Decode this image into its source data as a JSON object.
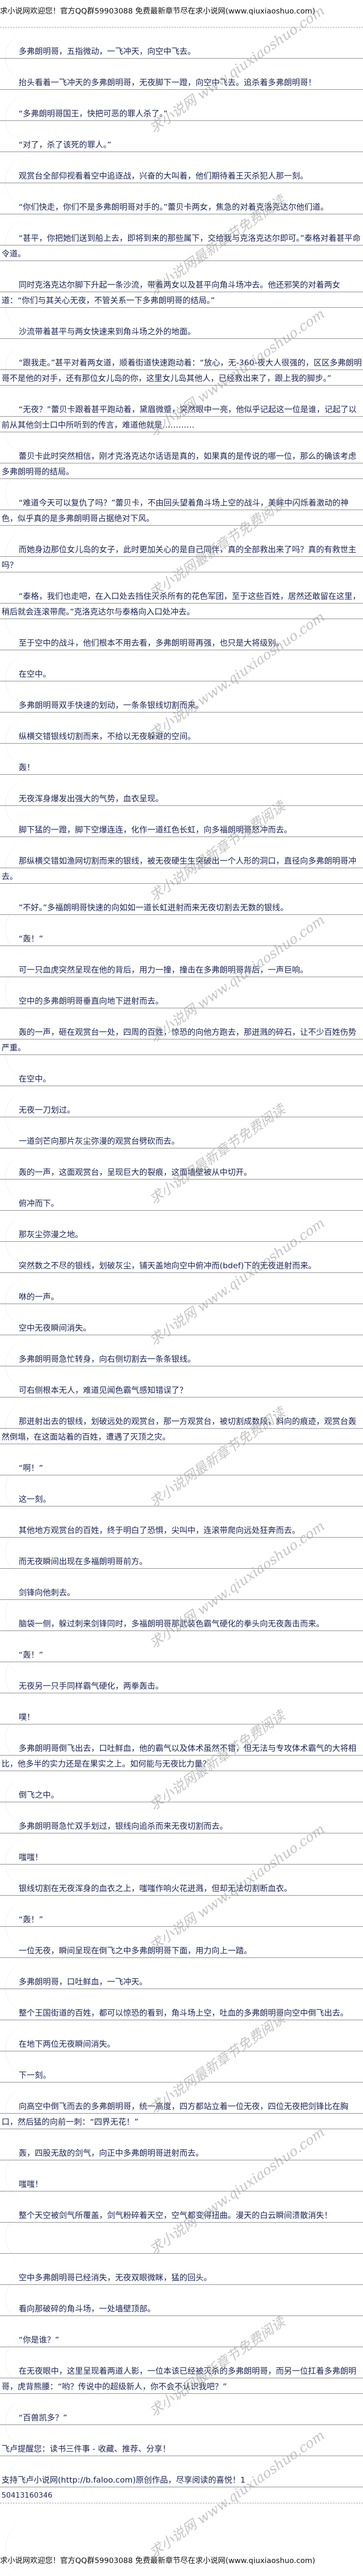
{
  "header": {
    "notice": "求小说网欢迎您！官方QQ群59903088 免费最新章节尽在求小说网(www.qiuxiaoshuo.com)"
  },
  "watermarks": {
    "site": "求小说网 www.qiuxiaoshuo.com",
    "slogan": "求小说网最新章节免费阅读"
  },
  "content": {
    "paragraphs": [
      "多弗朗明哥，五指微动，一飞冲天，向空中飞去。",
      "抬头看着一飞冲天的多弗朗明哥，无夜脚下一蹬，向空中飞去。追杀着多弗朗明哥！",
      "“多弗朗明哥国王，快把可恶的罪人杀了。”",
      "“对了，杀了该死的罪人。”",
      "观赏台全部仰视看着空中追逐战，兴奋的大叫着，他们期待着王灭杀犯人那一刻。",
      "“你们快走，你们不是多弗朗明哥对手的。”蕾贝卡两女，焦急的对着克洛克达尔他们道。",
      "“甚平，你把她们送到船上去，即将到来的那些属下，交给我与克洛克达尔即可。”泰格对着甚平命令道。",
      "同时克洛克达尔脚下升起一条沙流，带着两女以及甚平向角斗场冲去。他还邪笑的对着两女道：“你们与其关心无夜，不管关系一下多弗朗明哥的结局。”",
      "沙流带着甚平与两女快速来到角斗场之外的地面。",
      "“跟我走。”甚平对着两女道，顺着街道快速跑动着：“放心，无-360-夜大人很强的，区区多弗朗明哥不是他的对手，还有那位女儿岛的你，这里女儿岛其他人，已经救出来了，跟上我的脚步。”",
      "“无夜？”蕾贝卡跟着甚平跑动着，黛眉微蹙，突然眼中一亮，他似乎记起这一位是谁，记起了以前从其他剑士口中所听到的传言，难道他就是…………",
      "蕾贝卡此时突然相信，刚才克洛克达尔话语是真的，如果真的是传说的哪一位，那么的确该考虑多弗朗明哥的结局。",
      "“难道今天可以复仇了吗？”蕾贝卡，不由回头望着角斗场上空的战斗，美眸中闪烁着激动的神色，似乎真的是多弗朗明哥占据绝对下风。",
      "而她身边那位女儿岛的女子，此时更加关心的是自己同伴，真的全部救出来了吗？真的有救世主吗？",
      "“泰格，我们也走吧，在入口处去挡住灭杀所有的花色军团，至于这些百姓，居然还敢留在这里，稍后就会连滚带爬。”克洛克达尔与泰格向入口处冲去。",
      "至于空中的战斗，他们根本不用去看，多弗朗明哥再强，也只是大将级别。",
      "在空中。",
      "多弗朗明哥双手快速的划动，一条条银线切割而来。",
      "纵横交错银线切割而来，不给以无夜躲避的空间。",
      "轰！",
      "无夜浑身爆发出强大的气势，血衣呈现。",
      "脚下猛的一蹬，脚下空爆连连，化作一道红色长虹，向多福朗明哥怒冲而去。",
      "那纵横交错如渔网切割而来的银线，被无夜硬生生突破出一个人形的洞口，直径向多弗朗明哥冲去。",
      "”不好。”多福朗明哥快速的向如如一道长虹迸射而来无夜切割去无数的银线。",
      "“轰！”",
      "可一只血虎突然呈现在他的背后，用力一撞，撞击在多弗朗明哥背后，一声巨响。",
      "空中的多弗朗明哥垂直向地下迸射而去。",
      "轰的一声，砸在观赏台一处，四周的百姓，惊恐的向他方跑去，那迸溅的碎石，让不少百姓伤势严重。",
      "在空中。",
      "无夜一刀划过。",
      "一道剑芒向那片灰尘弥漫的观赏台劈砍而去。",
      "轰的一声，这面观赏台，呈现巨大的裂痕，这面墙壁被从中切开。",
      "俯冲而下。",
      "那灰尘弥漫之地。",
      "突然数之不尽的银线，划破灰尘，铺天盖地向空中俯冲而(bdef)下的无夜迸射而来。",
      "咻的一声。",
      "空中无夜瞬间消失。",
      "多弗朗明哥急忙转身，向右侧切割去一条条银线。",
      "可右侧根本无人，难道见闻色霸气感知错误了？",
      "那迸射出去的银线，划破远处的观赏台，那一方观赏台，被切割成数段，斜向的痕迹，观赏台轰然倒塌，在这面站着的百姓，遭遇了灭顶之灾。",
      "“啊！”",
      "这一刻。",
      "其他地方观赏台的百姓，终于明白了恐惧，尖叫中，连滚带爬向远处狂奔而去。",
      "而无夜瞬间出现在多福朗明哥前方。",
      "剑锋向他刺去。",
      "脑袋一侧，躲过刺来剑锋同时，多福朗明哥那武装色霸气硬化的拳头向无夜轰击而来。",
      "“轰！”",
      "无夜另一只手同样霸气硬化，两拳轰击。",
      "噗！",
      "多弗朗明哥倒飞出去，口吐鲜血，他的霸气以及体术虽然不错，但无法与专攻体术霸气的大将相比，他多半的实力还是在果实之上。如何能与无夜比力量？",
      "倒飞之中。",
      "多弗朗明哥急忙双手划过，银线向追杀而来无夜切割而去。",
      "嗤嗤！",
      "银线切割在无夜浑身的血衣之上，嗤嗤作响火花迸溅，但却无法切割断血衣。",
      "“轰！”",
      "一位无夜，瞬间呈现在倒飞之中多弗朗明哥下面，用力向上一踏。",
      "多弗朗明哥，口吐鲜血，一飞冲天。",
      "整个王国街道的百姓，都可以惊恐的看到，角斗场上空，吐血的多弗朗明哥向空中倒飞出去。",
      "在地下两位无夜瞬间消失。",
      "下一刻。",
      "向高空中倒飞而去的多弗朗明哥，统一高度，四方都站立着一位无夜，四位无夜把剑锋比在胸口，然后猛的向前一刺：“四界无花！”",
      "轰，四股无敌的剑气，向正中多弗朗明哥迸射而去。",
      "嗤嗤！",
      "整个天空被剑气所覆盖，剑气粉碎着天空，空气都变得扭曲。漫天的白云瞬间溃散消失！"
    ],
    "paragraphs_after_break": [
      "空中多弗朗明哥已经消失，无夜双眼微眯，猛的回头。",
      "看向那破碎的角斗场，一处墙壁顶部。",
      "“你是谁？”",
      "在无夜眼中，这里呈现着两道人影，一位本该已经被灭杀的多弗朗明哥，而另一位扛着多弗朗明哥，虎背熊腰：“哟？传说中的超级新人，你不会不认识我吧？”",
      "“百兽凯多？”"
    ],
    "reminder": "飞卢提醒您：读书三件事 - 收藏、推荐、分享！",
    "support": "支持飞卢小说网(http://b.faloo.com)原创作品，尽享阅读的喜悦！1",
    "code": "50413160346"
  },
  "footer": {
    "notice": "求小说网欢迎您！官方QQ群59903088 免费最新章节尽在求小说网(www.qiuxiaoshuo.com)"
  },
  "colors": {
    "text": "#1b2456",
    "rule": "#8a8a8a",
    "watermark": "#969696"
  }
}
